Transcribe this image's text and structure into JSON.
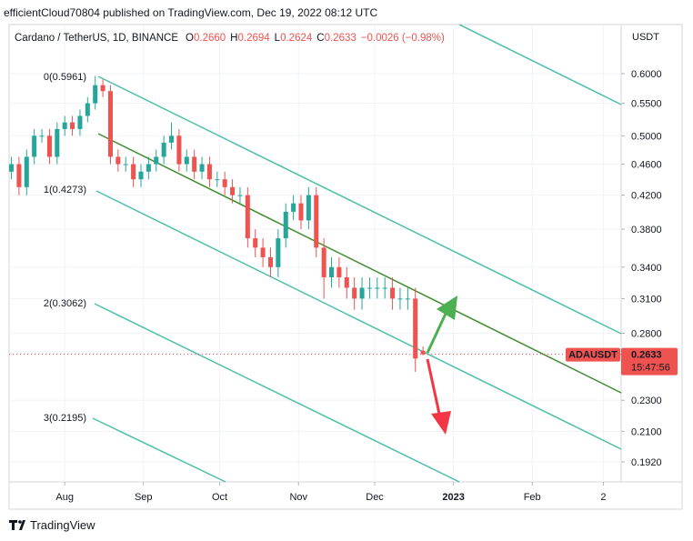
{
  "header": {
    "published": "efficientCloud70804 published on TradingView.com, Dec 19, 2022 08:12 UTC"
  },
  "footer": {
    "brand": "TradingView"
  },
  "chart_data": {
    "type": "candlestick",
    "legend": {
      "symbol": "Cardano / TetherUS, 1D, BINANCE",
      "items": [
        {
          "key": "O",
          "value": "0.2660"
        },
        {
          "key": "H",
          "value": "0.2694"
        },
        {
          "key": "L",
          "value": "0.2624"
        },
        {
          "key": "C",
          "value": "0.2633"
        }
      ],
      "change": "−0.0026 (−0.98%)"
    },
    "y_unit": "USDT",
    "open": [
      0.45,
      0.46,
      0.43,
      0.47,
      0.5,
      0.5,
      0.47,
      0.51,
      0.52,
      0.51,
      0.53,
      0.55,
      0.58,
      0.57,
      0.47,
      0.46,
      0.46,
      0.44,
      0.45,
      0.46,
      0.47,
      0.49,
      0.5,
      0.46,
      0.47,
      0.45,
      0.46,
      0.44,
      0.44,
      0.43,
      0.42,
      0.42,
      0.37,
      0.36,
      0.35,
      0.34,
      0.37,
      0.4,
      0.41,
      0.39,
      0.42,
      0.36,
      0.33,
      0.34,
      0.33,
      0.32,
      0.31,
      0.32,
      0.32,
      0.32,
      0.32,
      0.31,
      0.31,
      0.31,
      0.266
    ],
    "high": [
      0.47,
      0.47,
      0.48,
      0.51,
      0.51,
      0.51,
      0.52,
      0.53,
      0.53,
      0.54,
      0.56,
      0.596,
      0.59,
      0.58,
      0.48,
      0.47,
      0.47,
      0.46,
      0.47,
      0.48,
      0.5,
      0.52,
      0.51,
      0.48,
      0.48,
      0.47,
      0.47,
      0.45,
      0.45,
      0.44,
      0.43,
      0.43,
      0.38,
      0.37,
      0.36,
      0.38,
      0.41,
      0.42,
      0.42,
      0.43,
      0.43,
      0.37,
      0.35,
      0.35,
      0.34,
      0.33,
      0.33,
      0.33,
      0.33,
      0.33,
      0.33,
      0.32,
      0.32,
      0.32,
      0.2694
    ],
    "low": [
      0.44,
      0.42,
      0.42,
      0.46,
      0.49,
      0.46,
      0.46,
      0.5,
      0.5,
      0.5,
      0.52,
      0.54,
      0.56,
      0.46,
      0.45,
      0.45,
      0.43,
      0.43,
      0.44,
      0.45,
      0.46,
      0.48,
      0.45,
      0.45,
      0.44,
      0.44,
      0.43,
      0.43,
      0.42,
      0.41,
      0.41,
      0.36,
      0.35,
      0.34,
      0.33,
      0.33,
      0.36,
      0.39,
      0.38,
      0.38,
      0.35,
      0.31,
      0.32,
      0.32,
      0.31,
      0.3,
      0.3,
      0.31,
      0.31,
      0.31,
      0.3,
      0.3,
      0.3,
      0.25,
      0.2624
    ],
    "close": [
      0.46,
      0.43,
      0.47,
      0.5,
      0.5,
      0.47,
      0.51,
      0.52,
      0.51,
      0.53,
      0.55,
      0.58,
      0.57,
      0.47,
      0.46,
      0.46,
      0.44,
      0.45,
      0.46,
      0.47,
      0.49,
      0.5,
      0.46,
      0.47,
      0.45,
      0.46,
      0.44,
      0.44,
      0.43,
      0.42,
      0.42,
      0.37,
      0.36,
      0.35,
      0.34,
      0.37,
      0.4,
      0.41,
      0.39,
      0.42,
      0.36,
      0.33,
      0.34,
      0.33,
      0.32,
      0.31,
      0.32,
      0.32,
      0.32,
      0.32,
      0.31,
      0.31,
      0.31,
      0.26,
      0.2633
    ],
    "up_color": "#26a69a",
    "down_color": "#ef5350",
    "xlim": [
      -0.3,
      80
    ],
    "xticks": [
      {
        "value": 7,
        "label": "Aug"
      },
      {
        "value": 17.33,
        "label": "Sep"
      },
      {
        "value": 27.33,
        "label": "Oct"
      },
      {
        "value": 37.67,
        "label": "Nov"
      },
      {
        "value": 47.67,
        "label": "Dec"
      },
      {
        "value": 58,
        "label": "2023"
      },
      {
        "value": 68.33,
        "label": "Feb"
      },
      {
        "value": 77.67,
        "label": "2"
      }
    ],
    "ylim": [
      0.181,
      0.693
    ],
    "log_scale": true,
    "yticks": [
      {
        "value": 0.6,
        "label": "0.6000"
      },
      {
        "value": 0.55,
        "label": "0.5500"
      },
      {
        "value": 0.5,
        "label": "0.5000"
      },
      {
        "value": 0.46,
        "label": "0.4600"
      },
      {
        "value": 0.42,
        "label": "0.4200"
      },
      {
        "value": 0.38,
        "label": "0.3800"
      },
      {
        "value": 0.34,
        "label": "0.3400"
      },
      {
        "value": 0.31,
        "label": "0.3100"
      },
      {
        "value": 0.28,
        "label": "0.2800"
      },
      {
        "value": 0.23,
        "label": "0.2300"
      },
      {
        "value": 0.21,
        "label": "0.2100"
      },
      {
        "value": 0.192,
        "label": "0.1920"
      }
    ],
    "grid": true,
    "annotations": [
      "0(0.5961)",
      "1(0.4273)",
      "2(0.3062)",
      "3(0.2195)"
    ],
    "last_price": {
      "symbol": "ADAUSDT",
      "value": 0.2633,
      "countdown": "15:47:56"
    }
  }
}
